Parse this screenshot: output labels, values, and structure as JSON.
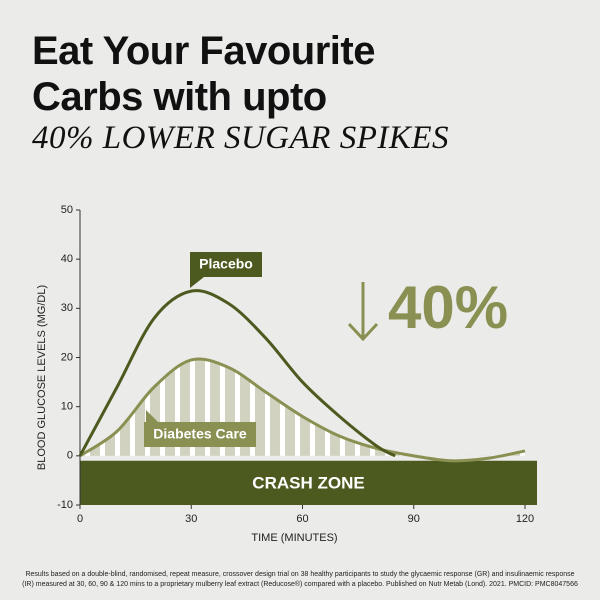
{
  "title": "Eat Your Favourite Carbs with upto",
  "subtitle": "40% LOWER SUGAR SPIKES",
  "footnote": "Results based on a double-blind, randomised, repeat measure, crossover design trial on 38 healthy participants to study the glycaemic response (GR) and insulinaemic response (IR) measured at 30, 60, 90 & 120 mins to a proprietary mulberry leaf extract (Reducose®) compared with a placebo. Published on Nutr Metab (Lond). 2021. PMCID: PMC8047566",
  "chart_data": {
    "type": "line",
    "xlabel": "TIME (MINUTES)",
    "ylabel": "BLOOD GLUCOSE LEVELS (MG/DL)",
    "xlim": [
      0,
      120
    ],
    "xticks": [
      0,
      30,
      60,
      90,
      120
    ],
    "ylim": [
      -10,
      50
    ],
    "yticks": [
      -10,
      0,
      10,
      20,
      30,
      40,
      50
    ],
    "series": [
      {
        "name": "Placebo",
        "color": "#4d5a1f",
        "x": [
          0,
          10,
          20,
          30,
          40,
          50,
          60,
          70,
          80,
          85
        ],
        "values": [
          0,
          14,
          28,
          33.5,
          31,
          24,
          15,
          8,
          2,
          0
        ]
      },
      {
        "name": "Diabetes Care",
        "color": "#8a8f52",
        "x": [
          0,
          10,
          20,
          30,
          40,
          50,
          60,
          70,
          80,
          90,
          100,
          110,
          120
        ],
        "values": [
          0,
          5,
          14,
          19.5,
          18,
          13,
          8,
          4,
          1.5,
          0,
          -1,
          -0.5,
          1
        ]
      }
    ],
    "crash_zone": {
      "label": "CRASH ZONE",
      "from": -10,
      "to": -1,
      "color": "#4d5a1f"
    },
    "annotation": "40%"
  }
}
